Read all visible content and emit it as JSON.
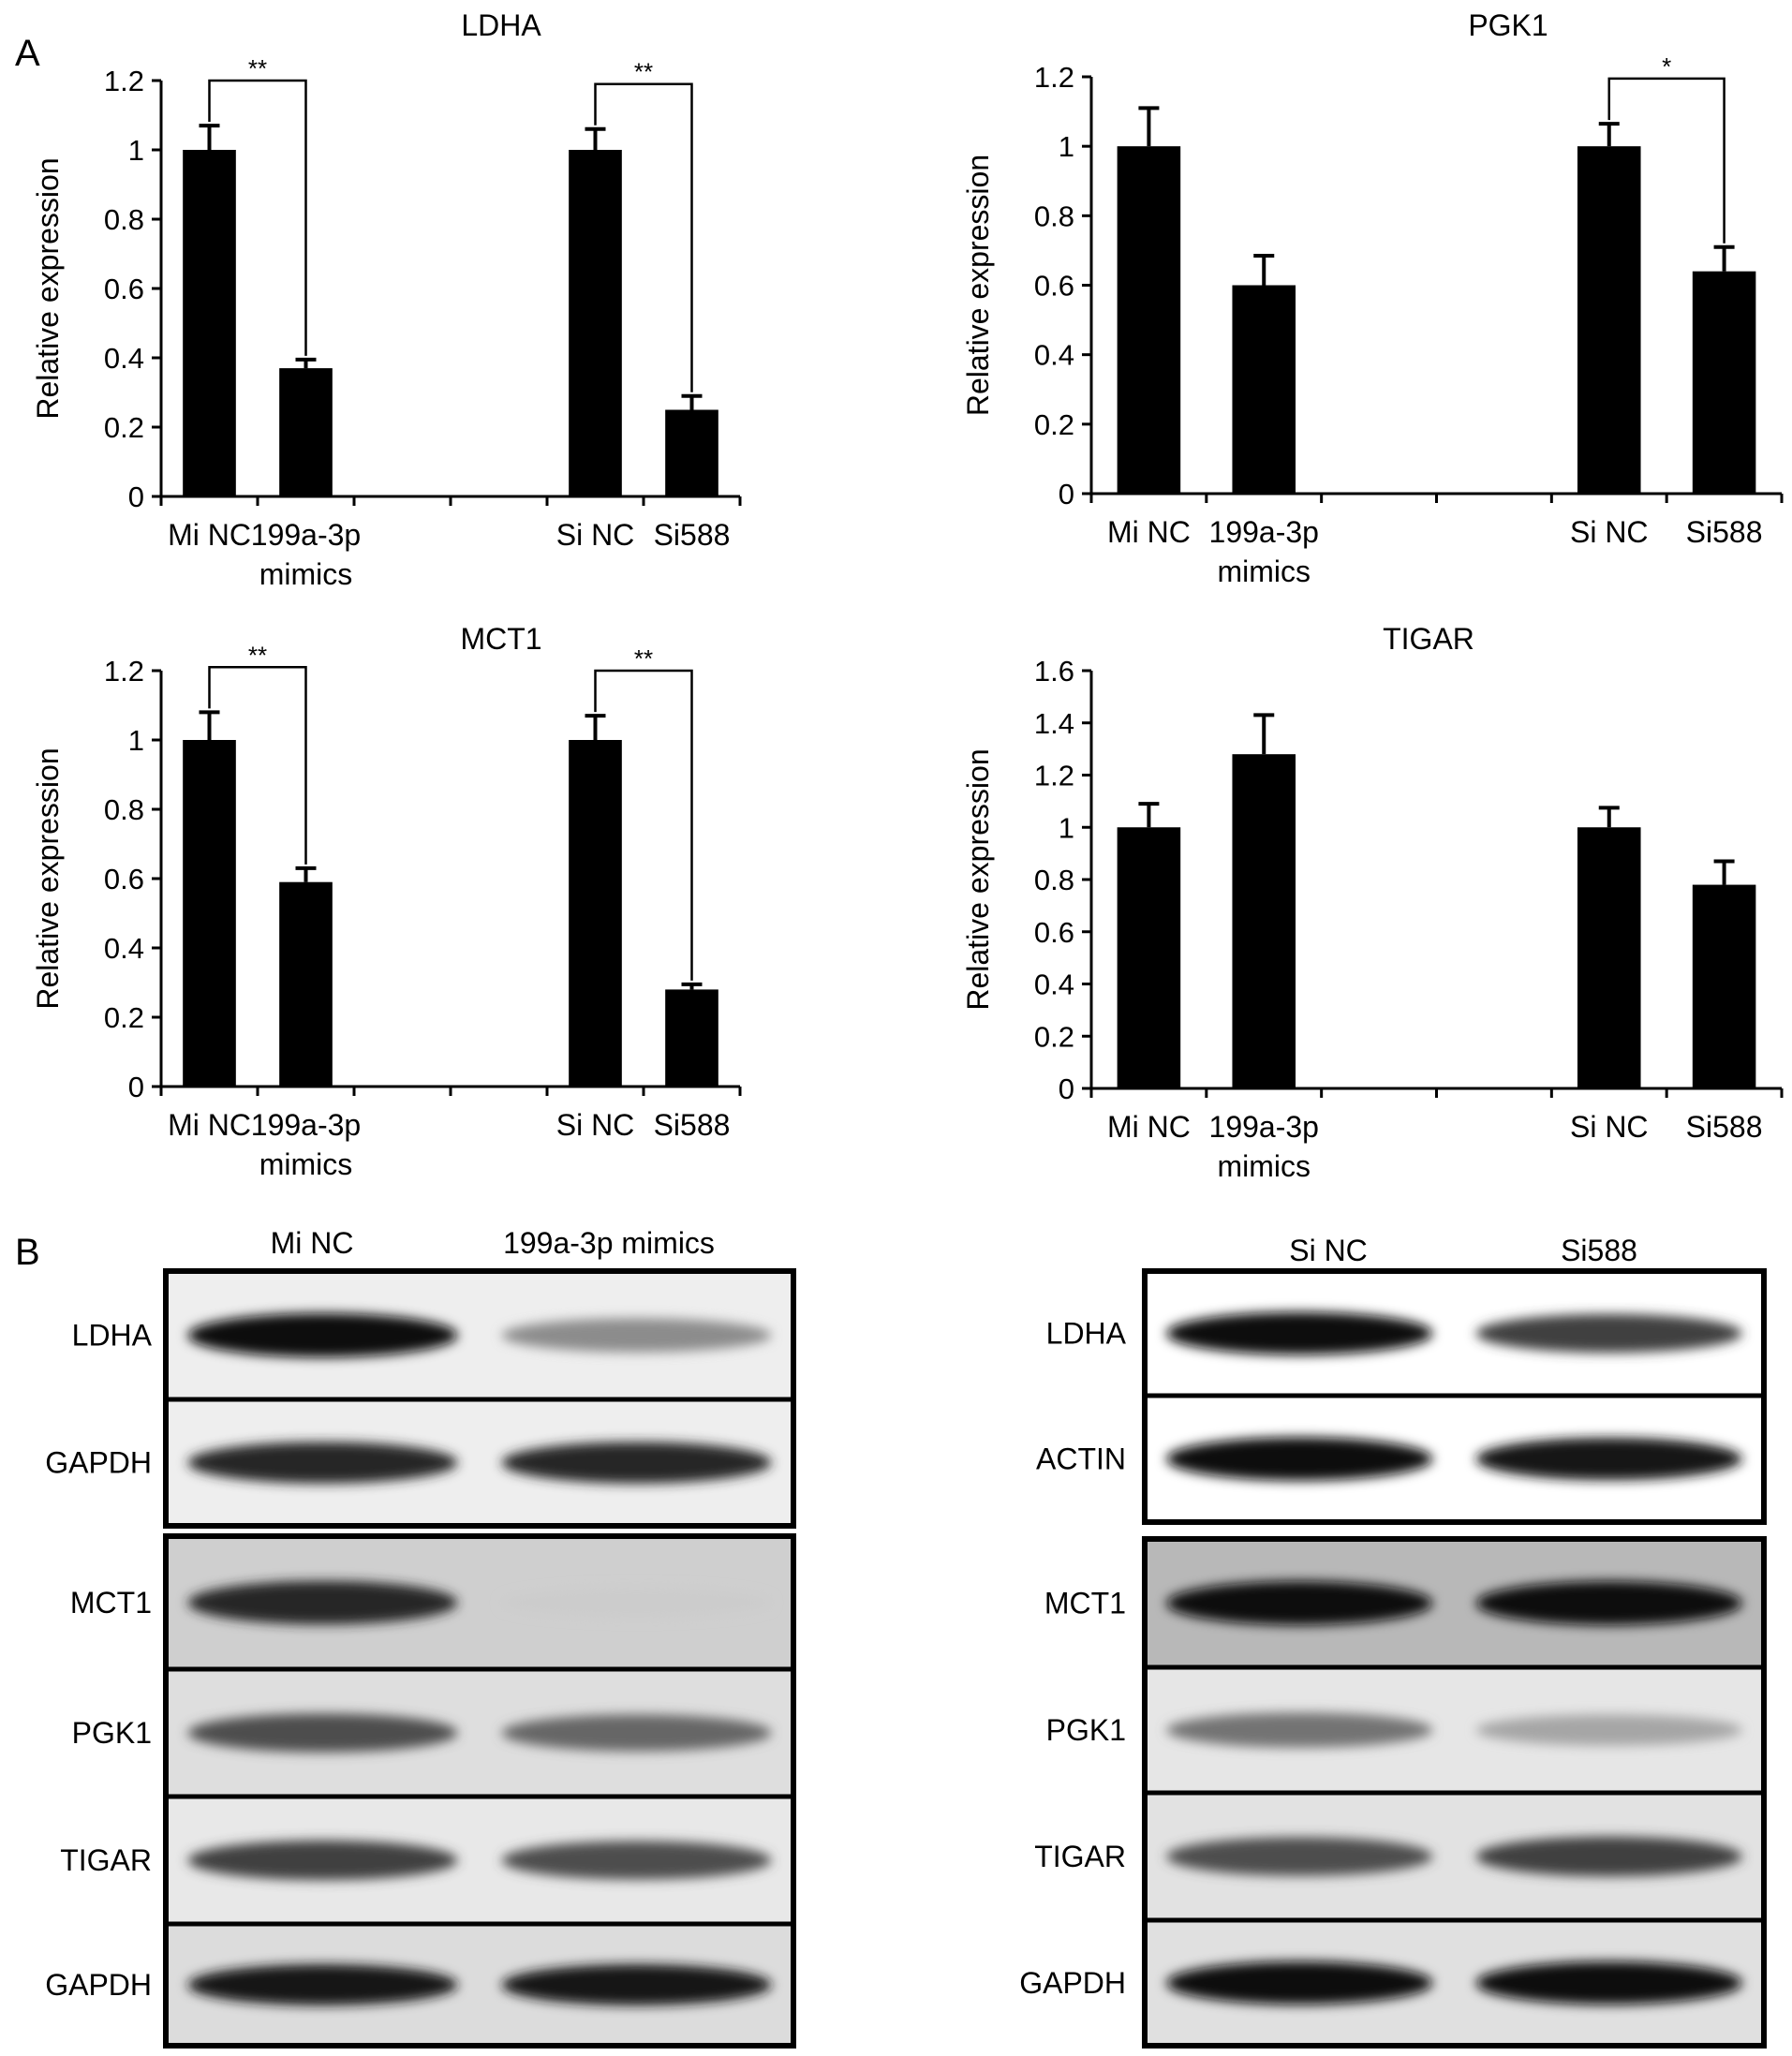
{
  "panel_labels": {
    "a": "A",
    "b": "B"
  },
  "chart_data": [
    {
      "type": "bar",
      "title": "LDHA",
      "ylabel": "Relative expression",
      "ylim": [
        0,
        1.2
      ],
      "yticks": [
        "0",
        "0.2",
        "0.4",
        "0.6",
        "0.8",
        "1",
        "1.2"
      ],
      "categories": [
        "Mi NC",
        "199a-3p mimics",
        "Si NC",
        "Si588"
      ],
      "category_lines": [
        [
          "Mi NC"
        ],
        [
          "199a-3p",
          "mimics"
        ],
        [
          "Si NC"
        ],
        [
          "Si588"
        ]
      ],
      "values": [
        1.0,
        0.37,
        1.0,
        0.25
      ],
      "errors": [
        0.07,
        0.025,
        0.06,
        0.04
      ],
      "significance": [
        {
          "from": 0,
          "to": 1,
          "label": "**"
        },
        {
          "from": 2,
          "to": 3,
          "label": "**"
        }
      ]
    },
    {
      "type": "bar",
      "title": "PGK1",
      "ylabel": "Relative expression",
      "ylim": [
        0,
        1.2
      ],
      "yticks": [
        "0",
        "0.2",
        "0.4",
        "0.6",
        "0.8",
        "1",
        "1.2"
      ],
      "categories": [
        "Mi NC",
        "199a-3p mimics",
        "Si NC",
        "Si588"
      ],
      "category_lines": [
        [
          "Mi NC"
        ],
        [
          "199a-3p",
          "mimics"
        ],
        [
          "Si NC"
        ],
        [
          "Si588"
        ]
      ],
      "values": [
        1.0,
        0.6,
        1.0,
        0.64
      ],
      "errors": [
        0.11,
        0.085,
        0.065,
        0.07
      ],
      "significance": [
        {
          "from": 2,
          "to": 3,
          "label": "*"
        }
      ]
    },
    {
      "type": "bar",
      "title": "MCT1",
      "ylabel": "Relative expression",
      "ylim": [
        0,
        1.2
      ],
      "yticks": [
        "0",
        "0.2",
        "0.4",
        "0.6",
        "0.8",
        "1",
        "1.2"
      ],
      "categories": [
        "Mi NC",
        "199a-3p mimics",
        "Si NC",
        "Si588"
      ],
      "category_lines": [
        [
          "Mi NC"
        ],
        [
          "199a-3p",
          "mimics"
        ],
        [
          "Si NC"
        ],
        [
          "Si588"
        ]
      ],
      "values": [
        1.0,
        0.59,
        1.0,
        0.28
      ],
      "errors": [
        0.08,
        0.04,
        0.07,
        0.015
      ],
      "significance": [
        {
          "from": 0,
          "to": 1,
          "label": "**"
        },
        {
          "from": 2,
          "to": 3,
          "label": "**"
        }
      ]
    },
    {
      "type": "bar",
      "title": "TIGAR",
      "ylabel": "Relative expression",
      "ylim": [
        0,
        1.6
      ],
      "yticks": [
        "0",
        "0.2",
        "0.4",
        "0.6",
        "0.8",
        "1",
        "1.2",
        "1.4",
        "1.6"
      ],
      "categories": [
        "Mi NC",
        "199a-3p mimics",
        "Si NC",
        "Si588"
      ],
      "category_lines": [
        [
          "Mi NC"
        ],
        [
          "199a-3p",
          "mimics"
        ],
        [
          "Si NC"
        ],
        [
          "Si588"
        ]
      ],
      "values": [
        1.0,
        1.28,
        1.0,
        0.78
      ],
      "errors": [
        0.09,
        0.15,
        0.075,
        0.09
      ],
      "significance": []
    }
  ],
  "western_blots": [
    {
      "columns": [
        "Mi NC",
        "199a-3p mimics"
      ],
      "groups": [
        {
          "rows": [
            {
              "label": "LDHA",
              "lanes": [
                0.95,
                0.45
              ],
              "background": "#eeeeee"
            },
            {
              "label": "GAPDH",
              "lanes": [
                0.85,
                0.85
              ],
              "background": "#eeeeee"
            }
          ]
        },
        {
          "rows": [
            {
              "label": "MCT1",
              "lanes": [
                0.85,
                0.2
              ],
              "background": "#cfcfcf"
            },
            {
              "label": "PGK1",
              "lanes": [
                0.7,
                0.6
              ],
              "background": "#dedede"
            },
            {
              "label": "TIGAR",
              "lanes": [
                0.75,
                0.7
              ],
              "background": "#e8e8e8"
            },
            {
              "label": "GAPDH",
              "lanes": [
                0.9,
                0.9
              ],
              "background": "#dcdcdc"
            }
          ]
        }
      ]
    },
    {
      "columns": [
        "Si NC",
        "Si588"
      ],
      "groups": [
        {
          "rows": [
            {
              "label": "LDHA",
              "lanes": [
                0.95,
                0.75
              ],
              "background": "#ffffff"
            },
            {
              "label": "ACTIN",
              "lanes": [
                0.95,
                0.9
              ],
              "background": "#ffffff"
            }
          ]
        },
        {
          "rows": [
            {
              "label": "MCT1",
              "lanes": [
                0.95,
                0.95
              ],
              "background": "#b8b8b8"
            },
            {
              "label": "PGK1",
              "lanes": [
                0.55,
                0.35
              ],
              "background": "#e6e6e6"
            },
            {
              "label": "TIGAR",
              "lanes": [
                0.7,
                0.75
              ],
              "background": "#e2e2e2"
            },
            {
              "label": "GAPDH",
              "lanes": [
                0.95,
                0.95
              ],
              "background": "#e0e0e0"
            }
          ]
        }
      ]
    }
  ]
}
